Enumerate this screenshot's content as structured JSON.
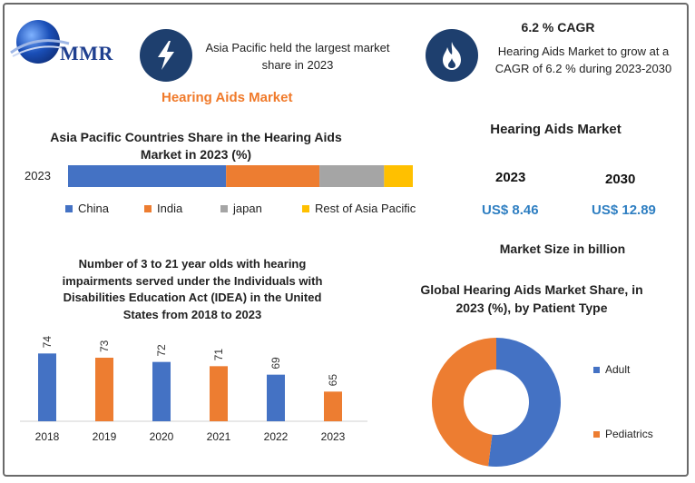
{
  "brand": {
    "logo_text": "MMR"
  },
  "colors": {
    "blue": "#4472c4",
    "orange": "#ed7d31",
    "gray": "#a5a5a5",
    "yellow": "#ffc000",
    "dark_navy": "#1e3f6e",
    "accent_orange": "#f07a2a",
    "usd_blue": "#2f7fc2"
  },
  "icons": {
    "left_badge": "lightning-icon",
    "right_badge": "flame-icon"
  },
  "info_left": {
    "text": "Asia Pacific held the largest market share in 2023"
  },
  "info_right": {
    "title": "6.2 % CAGR",
    "text": "Hearing Aids Market to grow at a CAGR of 6.2 % during 2023-2030"
  },
  "main_title": "Hearing Aids Market",
  "market_size": {
    "title": "Hearing Aids Market",
    "years": [
      "2023",
      "2030"
    ],
    "values": [
      "US$ 8.46",
      "US$ 12.89"
    ],
    "caption": "Market Size in billion"
  },
  "chart_data": [
    {
      "type": "bar",
      "orientation": "horizontal-stacked",
      "title": "Asia Pacific Countries Share in the  Hearing Aids Market in 2023 (%)",
      "categories": [
        "2023"
      ],
      "series": [
        {
          "name": "China",
          "values": [
            44
          ],
          "color": "#4472c4"
        },
        {
          "name": "India",
          "values": [
            26
          ],
          "color": "#ed7d31"
        },
        {
          "name": "japan",
          "values": [
            18
          ],
          "color": "#a5a5a5"
        },
        {
          "name": "Rest of Asia Pacific",
          "values": [
            8
          ],
          "color": "#ffc000"
        }
      ],
      "legend": "bottom"
    },
    {
      "type": "bar",
      "title": "Number of 3 to 21 year olds with hearing impairments served under the Individuals with Disabilities Education Act (IDEA) in the United States from 2018 to 2023",
      "categories": [
        "2018",
        "2019",
        "2020",
        "2021",
        "2022",
        "2023"
      ],
      "values": [
        74,
        73,
        72,
        71,
        69,
        65
      ],
      "colors": [
        "#4472c4",
        "#ed7d31",
        "#4472c4",
        "#ed7d31",
        "#4472c4",
        "#ed7d31"
      ],
      "ylim": [
        58,
        76
      ],
      "grid": false
    },
    {
      "type": "pie",
      "variant": "donut",
      "title": "Global Hearing Aids Market Share, in 2023 (%), by Patient Type",
      "categories": [
        "Adult",
        "Pediatrics"
      ],
      "values": [
        52,
        48
      ],
      "colors": [
        "#4472c4",
        "#ed7d31"
      ],
      "legend": "right"
    }
  ]
}
